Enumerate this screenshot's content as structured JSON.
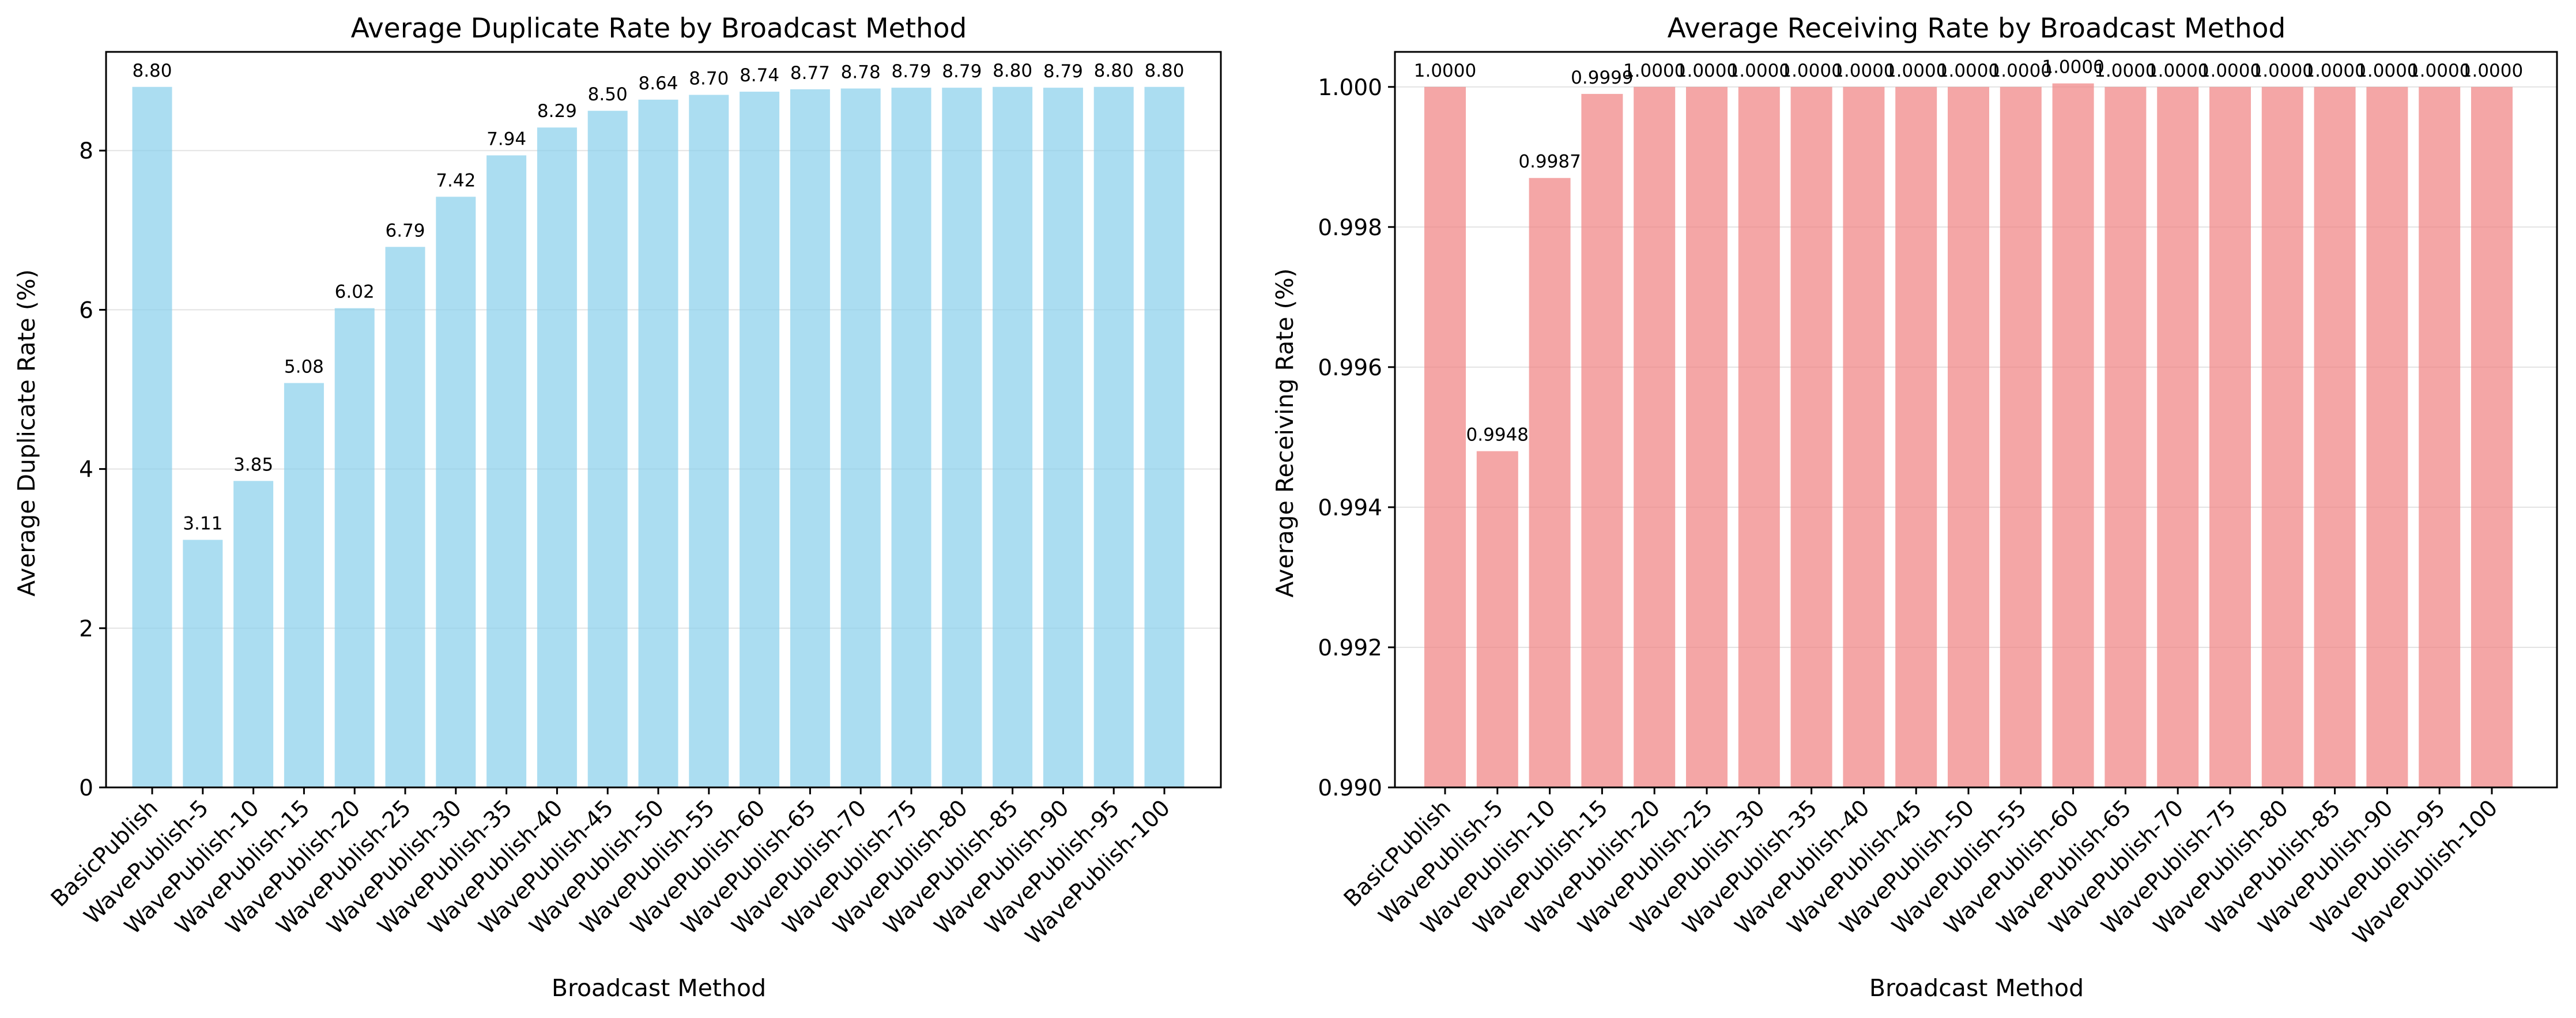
{
  "chart_data": [
    {
      "type": "bar",
      "title": "Average Duplicate Rate by Broadcast Method",
      "xlabel": "Broadcast Method",
      "ylabel": "Average Duplicate Rate (%)",
      "ylim": [
        0,
        9.24
      ],
      "yticks": [
        0,
        2,
        4,
        6,
        8
      ],
      "ytick_labels": [
        "0",
        "2",
        "4",
        "6",
        "8"
      ],
      "grid": "y",
      "bar_color": "#87CEEB",
      "categories": [
        "BasicPublish",
        "WavePublish-5",
        "WavePublish-10",
        "WavePublish-15",
        "WavePublish-20",
        "WavePublish-25",
        "WavePublish-30",
        "WavePublish-35",
        "WavePublish-40",
        "WavePublish-45",
        "WavePublish-50",
        "WavePublish-55",
        "WavePublish-60",
        "WavePublish-65",
        "WavePublish-70",
        "WavePublish-75",
        "WavePublish-80",
        "WavePublish-85",
        "WavePublish-90",
        "WavePublish-95",
        "WavePublish-100"
      ],
      "values": [
        8.8,
        3.11,
        3.85,
        5.08,
        6.02,
        6.79,
        7.42,
        7.94,
        8.29,
        8.5,
        8.64,
        8.7,
        8.74,
        8.77,
        8.78,
        8.79,
        8.79,
        8.8,
        8.79,
        8.8,
        8.8
      ],
      "value_labels": [
        "8.80",
        "3.11",
        "3.85",
        "5.08",
        "6.02",
        "6.79",
        "7.42",
        "7.94",
        "8.29",
        "8.50",
        "8.64",
        "8.70",
        "8.74",
        "8.77",
        "8.78",
        "8.79",
        "8.79",
        "8.80",
        "8.79",
        "8.80",
        "8.80"
      ]
    },
    {
      "type": "bar",
      "title": "Average Receiving Rate by Broadcast Method",
      "xlabel": "Broadcast Method",
      "ylabel": "Average Receiving Rate (%)",
      "ylim": [
        0.99,
        1.0005
      ],
      "yticks": [
        0.99,
        0.992,
        0.994,
        0.996,
        0.998,
        1.0
      ],
      "ytick_labels": [
        "0.990",
        "0.992",
        "0.994",
        "0.996",
        "0.998",
        "1.000"
      ],
      "grid": "y",
      "bar_color": "#F08080",
      "categories": [
        "BasicPublish",
        "WavePublish-5",
        "WavePublish-10",
        "WavePublish-15",
        "WavePublish-20",
        "WavePublish-25",
        "WavePublish-30",
        "WavePublish-35",
        "WavePublish-40",
        "WavePublish-45",
        "WavePublish-50",
        "WavePublish-55",
        "WavePublish-60",
        "WavePublish-65",
        "WavePublish-70",
        "WavePublish-75",
        "WavePublish-80",
        "WavePublish-85",
        "WavePublish-90",
        "WavePublish-95",
        "WavePublish-100"
      ],
      "values": [
        1.0,
        0.9948,
        0.9987,
        0.9999,
        1.0,
        1.0,
        1.0,
        1.0,
        1.0,
        1.0,
        1.0,
        1.0,
        1.00005,
        1.0,
        1.0,
        1.0,
        1.0,
        1.0,
        1.0,
        1.0,
        1.0
      ],
      "value_labels": [
        "1.0000",
        "0.9948",
        "0.9987",
        "0.9999",
        "1.0000",
        "1.0000",
        "1.0000",
        "1.0000",
        "1.0000",
        "1.0000",
        "1.0000",
        "1.0000",
        "1.0000",
        "1.0000",
        "1.0000",
        "1.0000",
        "1.0000",
        "1.0000",
        "1.0000",
        "1.0000",
        "1.0000"
      ]
    }
  ]
}
